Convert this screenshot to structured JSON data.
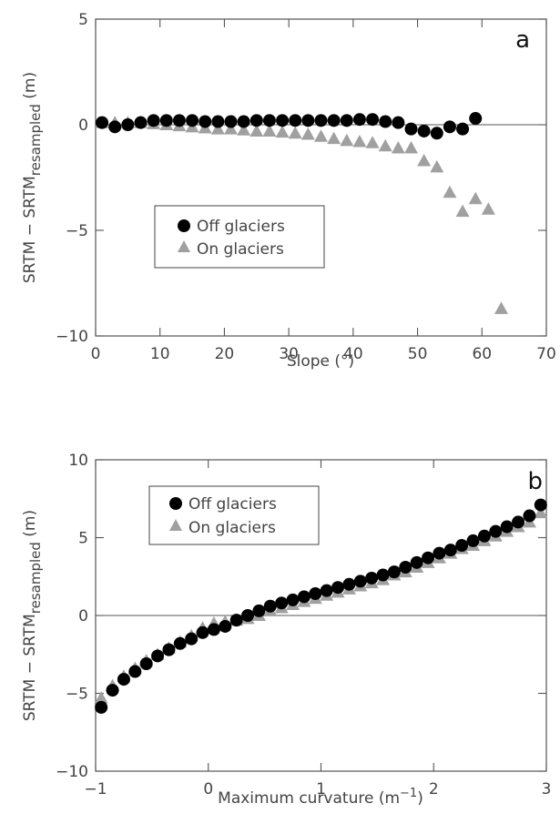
{
  "colors": {
    "off_glaciers": "#000000",
    "on_glaciers": "#a0a0a0"
  },
  "chart_data": [
    {
      "type": "scatter",
      "panel_label": "a",
      "xlabel": "Slope (°)",
      "ylabel_main": "SRTM − SRTM",
      "ylabel_sub": "resampled",
      "ylabel_unit": " (m)",
      "xlim": [
        0,
        70
      ],
      "ylim": [
        -10,
        5
      ],
      "xticks": [
        0,
        10,
        20,
        30,
        40,
        50,
        60,
        70
      ],
      "yticks": [
        -10,
        -5,
        0,
        5
      ],
      "xtick_labels": [
        "0",
        "10",
        "20",
        "30",
        "40",
        "50",
        "60",
        "70"
      ],
      "ytick_labels": [
        "−10",
        "−5",
        "0",
        "5"
      ],
      "zero_line": true,
      "legend_position": "center-left",
      "series": [
        {
          "name": "Off glaciers",
          "marker": "circle",
          "x": [
            1,
            3,
            5,
            7,
            9,
            11,
            13,
            15,
            17,
            19,
            21,
            23,
            25,
            27,
            29,
            31,
            33,
            35,
            37,
            39,
            41,
            43,
            45,
            47,
            49,
            51,
            53,
            55,
            57,
            59
          ],
          "y": [
            0.1,
            -0.1,
            0.0,
            0.1,
            0.2,
            0.2,
            0.2,
            0.2,
            0.15,
            0.15,
            0.15,
            0.15,
            0.2,
            0.2,
            0.2,
            0.2,
            0.2,
            0.2,
            0.2,
            0.2,
            0.25,
            0.25,
            0.15,
            0.1,
            -0.2,
            -0.3,
            -0.4,
            -0.1,
            -0.2,
            0.3
          ]
        },
        {
          "name": "On glaciers",
          "marker": "triangle",
          "x": [
            1,
            3,
            5,
            7,
            9,
            11,
            13,
            15,
            17,
            19,
            21,
            23,
            25,
            27,
            29,
            31,
            33,
            35,
            37,
            39,
            41,
            43,
            45,
            47,
            49,
            51,
            53,
            55,
            57,
            59,
            61,
            63
          ],
          "y": [
            0.1,
            0.1,
            0.1,
            0.1,
            0.05,
            0.0,
            -0.05,
            -0.1,
            -0.15,
            -0.2,
            -0.2,
            -0.25,
            -0.3,
            -0.3,
            -0.35,
            -0.4,
            -0.45,
            -0.55,
            -0.65,
            -0.75,
            -0.8,
            -0.85,
            -1.0,
            -1.1,
            -1.1,
            -1.7,
            -2.0,
            -3.2,
            -4.1,
            -3.5,
            -4.0,
            -8.7
          ]
        }
      ]
    },
    {
      "type": "scatter",
      "panel_label": "b",
      "xlabel_main": "Maximum curvature (m",
      "xlabel_sup": "−1",
      "xlabel_end": ")",
      "ylabel_main": "SRTM − SRTM",
      "ylabel_sub": "resampled",
      "ylabel_unit": " (m)",
      "xlim": [
        -1,
        3
      ],
      "ylim": [
        -10,
        10
      ],
      "xticks": [
        -1,
        0,
        1,
        2,
        3
      ],
      "yticks": [
        -10,
        -5,
        0,
        5,
        10
      ],
      "xtick_labels": [
        "−1",
        "0",
        "1",
        "2",
        "3"
      ],
      "ytick_labels": [
        "−10",
        "−5",
        "0",
        "5",
        "10"
      ],
      "zero_line": true,
      "legend_position": "top-left",
      "series": [
        {
          "name": "Off glaciers",
          "marker": "circle",
          "x": [
            -0.95,
            -0.85,
            -0.75,
            -0.65,
            -0.55,
            -0.45,
            -0.35,
            -0.25,
            -0.15,
            -0.05,
            0.05,
            0.15,
            0.25,
            0.35,
            0.45,
            0.55,
            0.65,
            0.75,
            0.85,
            0.95,
            1.05,
            1.15,
            1.25,
            1.35,
            1.45,
            1.55,
            1.65,
            1.75,
            1.85,
            1.95,
            2.05,
            2.15,
            2.25,
            2.35,
            2.45,
            2.55,
            2.65,
            2.75,
            2.85,
            2.95
          ],
          "y": [
            -5.9,
            -4.8,
            -4.1,
            -3.6,
            -3.1,
            -2.6,
            -2.2,
            -1.8,
            -1.5,
            -1.1,
            -0.9,
            -0.7,
            -0.3,
            0.0,
            0.3,
            0.6,
            0.8,
            1.0,
            1.2,
            1.4,
            1.6,
            1.8,
            2.0,
            2.2,
            2.4,
            2.6,
            2.8,
            3.1,
            3.4,
            3.7,
            4.0,
            4.2,
            4.5,
            4.8,
            5.1,
            5.4,
            5.7,
            6.0,
            6.4,
            7.1
          ]
        },
        {
          "name": "On glaciers",
          "marker": "triangle",
          "x": [
            -0.95,
            -0.85,
            -0.75,
            -0.65,
            -0.55,
            -0.45,
            -0.35,
            -0.25,
            -0.15,
            -0.05,
            0.05,
            0.15,
            0.25,
            0.35,
            0.45,
            0.55,
            0.65,
            0.75,
            0.85,
            0.95,
            1.05,
            1.15,
            1.25,
            1.35,
            1.45,
            1.55,
            1.65,
            1.75,
            1.85,
            1.95,
            2.05,
            2.15,
            2.25,
            2.35,
            2.45,
            2.55,
            2.65,
            2.75,
            2.85,
            2.95
          ],
          "y": [
            -5.3,
            -4.5,
            -3.9,
            -3.4,
            -2.9,
            -2.5,
            -2.1,
            -1.7,
            -1.3,
            -0.8,
            -0.5,
            -0.4,
            -0.3,
            -0.2,
            0.0,
            0.3,
            0.5,
            0.7,
            0.9,
            1.1,
            1.3,
            1.5,
            1.7,
            1.9,
            2.1,
            2.3,
            2.6,
            2.8,
            3.1,
            3.4,
            3.7,
            4.0,
            4.3,
            4.5,
            4.8,
            5.1,
            5.4,
            5.7,
            6.0,
            6.6
          ]
        }
      ]
    }
  ]
}
